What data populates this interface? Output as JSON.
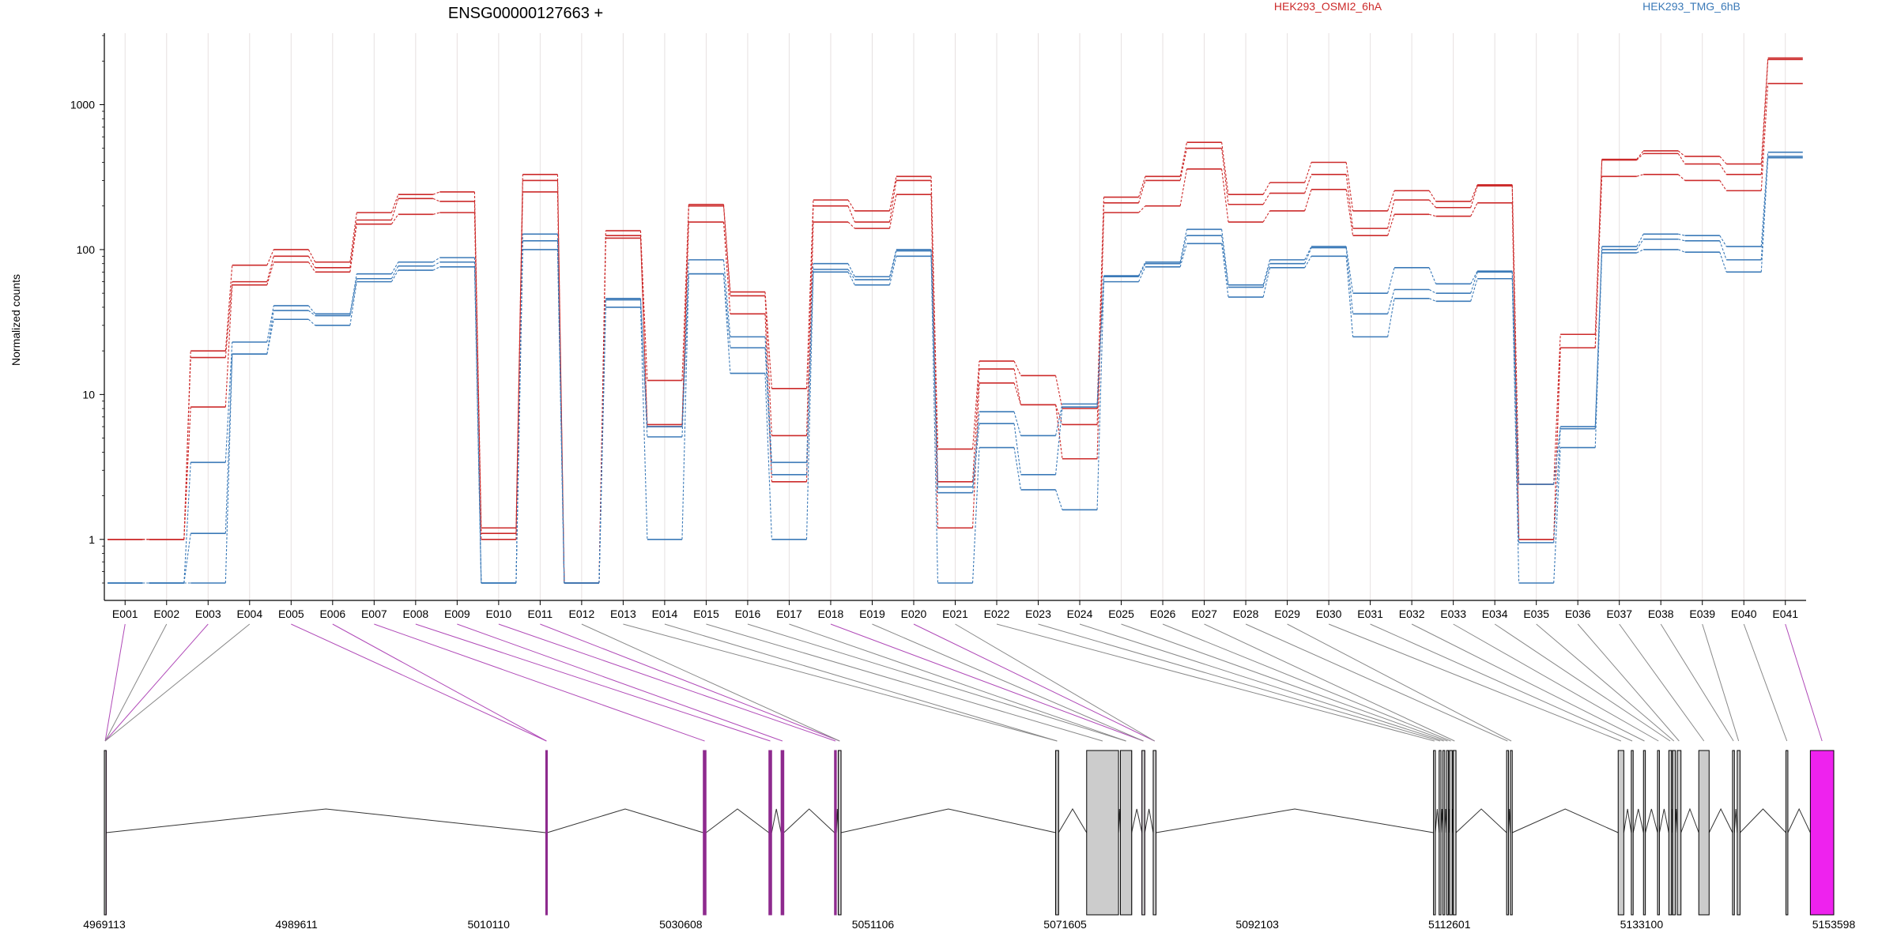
{
  "colors": {
    "sample_a": "#cc2a2a",
    "sample_b": "#3b7ab8",
    "exon_highlight": "#8e2a8e",
    "exon_link_highlight": "#b04ab8",
    "exon_default": "#cccccc",
    "exon_end": "#ee22ee",
    "grid": "#e6e0e0"
  },
  "chart_data": {
    "type": "line",
    "title": "ENSG00000127663 +",
    "ylabel": "Normalized counts",
    "y_scale": "log",
    "ylim": [
      0.5,
      3000
    ],
    "yticks": [
      {
        "v": 1,
        "label": "1"
      },
      {
        "v": 10,
        "label": "10"
      },
      {
        "v": 100,
        "label": "100"
      },
      {
        "v": 1000,
        "label": "1000"
      }
    ],
    "categories": [
      "E001",
      "E002",
      "E003",
      "E004",
      "E005",
      "E006",
      "E007",
      "E008",
      "E009",
      "E010",
      "E011",
      "E012",
      "E013",
      "E014",
      "E015",
      "E016",
      "E017",
      "E018",
      "E019",
      "E020",
      "E021",
      "E022",
      "E023",
      "E024",
      "E025",
      "E026",
      "E027",
      "E028",
      "E029",
      "E030",
      "E031",
      "E032",
      "E033",
      "E034",
      "E035",
      "E036",
      "E037",
      "E038",
      "E039",
      "E040",
      "E041"
    ],
    "legend": [
      {
        "label": "HEK293_OSMI2_6hA",
        "color_key": "sample_a"
      },
      {
        "label": "HEK293_TMG_6hB",
        "color_key": "sample_b"
      }
    ],
    "series": [
      {
        "group": "HEK293_OSMI2_6hA",
        "values": [
          1,
          1,
          20,
          78,
          100,
          82,
          180,
          240,
          250,
          1.2,
          330,
          0.5,
          135,
          12.5,
          205,
          51,
          11,
          220,
          185,
          320,
          4.2,
          17,
          13.5,
          8,
          230,
          320,
          550,
          240,
          290,
          400,
          185,
          255,
          215,
          280,
          2.4,
          26,
          420,
          480,
          440,
          390,
          2100
        ]
      },
      {
        "group": "HEK293_OSMI2_6hA",
        "values": [
          1,
          1,
          18,
          60,
          90,
          75,
          160,
          225,
          215,
          1.1,
          300,
          0.5,
          125,
          6.2,
          200,
          48,
          5.2,
          200,
          155,
          300,
          2.5,
          15,
          8.5,
          6.2,
          210,
          300,
          500,
          205,
          245,
          330,
          140,
          220,
          195,
          275,
          1,
          21,
          415,
          460,
          390,
          330,
          2050
        ]
      },
      {
        "group": "HEK293_OSMI2_6hA",
        "values": [
          1,
          1,
          8.2,
          57,
          82,
          70,
          150,
          175,
          180,
          1,
          250,
          0.5,
          120,
          6,
          155,
          36,
          2.5,
          155,
          140,
          240,
          1.2,
          12,
          8.5,
          3.6,
          180,
          200,
          360,
          155,
          185,
          260,
          125,
          175,
          170,
          210,
          1,
          21,
          320,
          330,
          300,
          255,
          1400
        ]
      },
      {
        "group": "HEK293_TMG_6hB",
        "values": [
          0.5,
          0.5,
          3.4,
          23,
          41,
          36,
          68,
          82,
          88,
          0.5,
          128,
          0.5,
          46,
          6,
          85,
          25,
          3.4,
          80,
          65,
          100,
          2.3,
          7.6,
          5.2,
          8.6,
          66,
          82,
          138,
          57,
          85,
          105,
          50,
          75,
          58,
          71,
          2.4,
          6,
          105,
          128,
          125,
          105,
          470
        ]
      },
      {
        "group": "HEK293_TMG_6hB",
        "values": [
          0.5,
          0.5,
          1.1,
          19,
          38,
          35,
          63,
          77,
          82,
          0.5,
          115,
          0.5,
          45,
          5.1,
          68,
          21,
          2.8,
          73,
          62,
          98,
          2.1,
          6.3,
          2.8,
          8.2,
          65,
          80,
          125,
          55,
          80,
          103,
          36,
          53,
          50,
          70,
          0.95,
          5.8,
          100,
          118,
          115,
          85,
          440
        ]
      },
      {
        "group": "HEK293_TMG_6hB",
        "values": [
          0.5,
          0.5,
          0.5,
          19,
          33,
          30,
          60,
          72,
          76,
          0.5,
          100,
          0.5,
          40,
          1,
          68,
          14,
          1,
          70,
          57,
          90,
          0.5,
          4.3,
          2.2,
          1.6,
          60,
          76,
          110,
          47,
          75,
          90,
          25,
          46,
          44,
          63,
          0.5,
          4.3,
          95,
          100,
          96,
          70,
          430
        ]
      }
    ],
    "genomic_axis": {
      "start": 4969113,
      "end": 5153598,
      "tick_labels": [
        "4969113",
        "4989611",
        "5010110",
        "5030608",
        "5051106",
        "5071605",
        "5092103",
        "5112601",
        "5133100",
        "5153598"
      ]
    },
    "exon_model": [
      {
        "id": "E001",
        "s": 4969113,
        "e": 4969300,
        "kind": "highlight"
      },
      {
        "id": "E002",
        "s": 4969113,
        "e": 4969300,
        "kind": "default"
      },
      {
        "id": "E003",
        "s": 4969113,
        "e": 4969300,
        "kind": "highlight"
      },
      {
        "id": "E004",
        "s": 4969113,
        "e": 4969300,
        "kind": "default"
      },
      {
        "id": "E005",
        "s": 5016200,
        "e": 5016350,
        "kind": "highlight"
      },
      {
        "id": "E006",
        "s": 5016200,
        "e": 5016350,
        "kind": "highlight"
      },
      {
        "id": "E007",
        "s": 5033000,
        "e": 5033300,
        "kind": "highlight"
      },
      {
        "id": "E008",
        "s": 5040000,
        "e": 5040300,
        "kind": "highlight"
      },
      {
        "id": "E009",
        "s": 5041300,
        "e": 5041600,
        "kind": "highlight"
      },
      {
        "id": "E010",
        "s": 5047000,
        "e": 5047200,
        "kind": "highlight"
      },
      {
        "id": "E011",
        "s": 5047400,
        "e": 5047700,
        "kind": "highlight"
      },
      {
        "id": "E012",
        "s": 5047400,
        "e": 5047700,
        "kind": "default"
      },
      {
        "id": "E013",
        "s": 5070600,
        "e": 5070900,
        "kind": "default"
      },
      {
        "id": "E014",
        "s": 5070600,
        "e": 5070900,
        "kind": "default"
      },
      {
        "id": "E015",
        "s": 5073900,
        "e": 5077300,
        "kind": "default"
      },
      {
        "id": "E016",
        "s": 5077500,
        "e": 5078700,
        "kind": "default"
      },
      {
        "id": "E017",
        "s": 5077500,
        "e": 5078700,
        "kind": "default"
      },
      {
        "id": "E018",
        "s": 5079800,
        "e": 5080100,
        "kind": "highlight"
      },
      {
        "id": "E019",
        "s": 5079800,
        "e": 5080100,
        "kind": "default"
      },
      {
        "id": "E020",
        "s": 5081000,
        "e": 5081300,
        "kind": "highlight"
      },
      {
        "id": "E021",
        "s": 5081000,
        "e": 5081300,
        "kind": "default"
      },
      {
        "id": "E022",
        "s": 5110900,
        "e": 5111100,
        "kind": "default"
      },
      {
        "id": "E023",
        "s": 5111500,
        "e": 5111700,
        "kind": "default"
      },
      {
        "id": "E024",
        "s": 5111900,
        "e": 5112100,
        "kind": "default"
      },
      {
        "id": "E025",
        "s": 5112300,
        "e": 5112500,
        "kind": "default"
      },
      {
        "id": "E026",
        "s": 5112600,
        "e": 5112900,
        "kind": "default"
      },
      {
        "id": "E027",
        "s": 5113000,
        "e": 5113300,
        "kind": "default"
      },
      {
        "id": "E028",
        "s": 5118700,
        "e": 5118900,
        "kind": "default"
      },
      {
        "id": "E029",
        "s": 5119100,
        "e": 5119300,
        "kind": "default"
      },
      {
        "id": "E030",
        "s": 5130600,
        "e": 5131200,
        "kind": "default"
      },
      {
        "id": "E031",
        "s": 5132000,
        "e": 5132200,
        "kind": "default"
      },
      {
        "id": "E032",
        "s": 5133300,
        "e": 5133500,
        "kind": "default"
      },
      {
        "id": "E033",
        "s": 5134800,
        "e": 5135000,
        "kind": "default"
      },
      {
        "id": "E034",
        "s": 5136000,
        "e": 5136300,
        "kind": "default"
      },
      {
        "id": "E035",
        "s": 5136400,
        "e": 5136700,
        "kind": "default"
      },
      {
        "id": "E036",
        "s": 5136900,
        "e": 5137300,
        "kind": "default"
      },
      {
        "id": "E037",
        "s": 5139200,
        "e": 5140300,
        "kind": "default"
      },
      {
        "id": "E038",
        "s": 5142800,
        "e": 5143000,
        "kind": "default"
      },
      {
        "id": "E039",
        "s": 5143300,
        "e": 5143600,
        "kind": "default"
      },
      {
        "id": "E040",
        "s": 5148500,
        "e": 5148700,
        "kind": "default"
      },
      {
        "id": "E041",
        "s": 5151100,
        "e": 5153598,
        "kind": "end"
      }
    ]
  }
}
